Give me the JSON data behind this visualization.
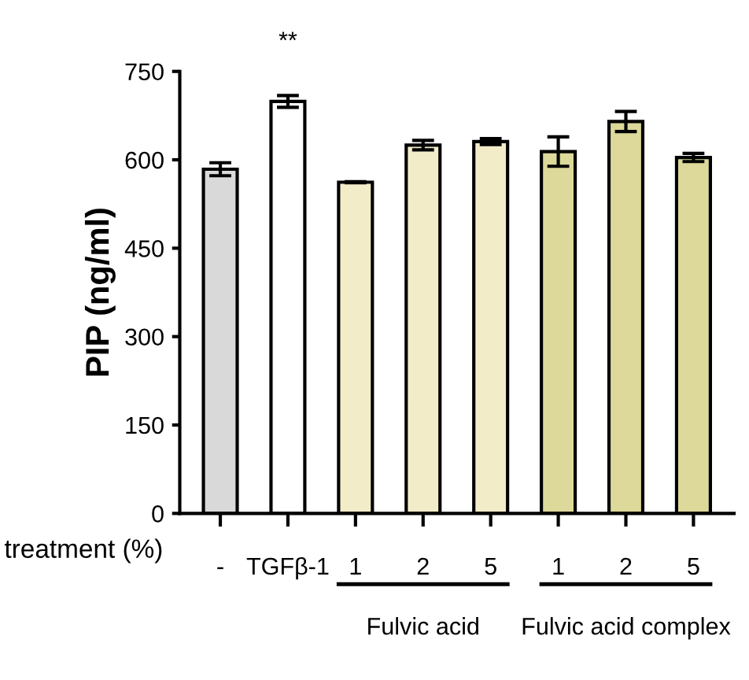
{
  "chart_data": {
    "type": "bar",
    "ylabel": "PIP (ng/ml)",
    "xlabel": "treatment (%)",
    "categories": [
      "-",
      "TGFβ-1",
      "1",
      "2",
      "5",
      "1",
      "2",
      "5"
    ],
    "values": [
      584,
      699,
      562,
      625,
      631,
      614,
      665,
      604
    ],
    "errors": [
      11,
      10,
      1,
      8,
      5,
      25,
      17,
      7
    ],
    "colors": [
      "#d9d9d9",
      "#ffffff",
      "#f3ecc9",
      "#f3ecc9",
      "#f3ecc9",
      "#dcd99a",
      "#dcd99a",
      "#dcd99a"
    ],
    "ylim": [
      0,
      750
    ],
    "yticks": [
      0,
      150,
      300,
      450,
      600,
      750
    ],
    "grid": false,
    "annotations": [
      {
        "text": "**",
        "x": "TGFβ-1",
        "y": 699
      },
      "Fulvic acid",
      "Fulvic acid complex"
    ]
  }
}
